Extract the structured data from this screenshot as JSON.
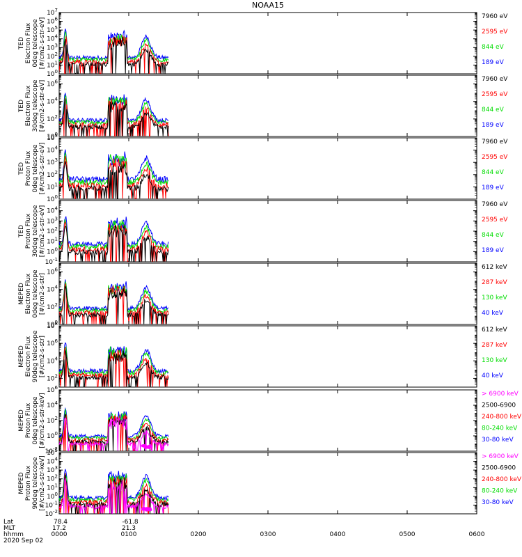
{
  "title": "NOAA15",
  "chart_data": {
    "type": "line",
    "title": "NOAA15",
    "x_axis": {
      "row_labels": [
        "Lat",
        "MLT",
        "hhmm",
        "2020 Sep 02"
      ],
      "ticks": [
        "0000",
        "0100",
        "0200",
        "0300",
        "0400",
        "0500",
        "0600"
      ],
      "lat_values": [
        "78.4",
        "-61.8"
      ],
      "mlt_values": [
        "17.2",
        "21.3"
      ],
      "xlim_hours": [
        0,
        6
      ]
    },
    "panels": [
      {
        "ylabel_lines": [
          "TED",
          "Electron Flux",
          "0deg telescope",
          "[#/cm2-s-str-eV]"
        ],
        "yticks": [
          "10^0",
          "10^1",
          "10^2",
          "10^3",
          "10^4",
          "10^5",
          "10^6",
          "10^7"
        ],
        "ylog": [
          0,
          7
        ],
        "legend": [
          {
            "label": "7960 eV",
            "color": "#000000"
          },
          {
            "label": "2595 eV",
            "color": "#ff0000"
          },
          {
            "label": "844 eV",
            "color": "#00dd00"
          },
          {
            "label": "189 eV",
            "color": "#0000ff"
          }
        ]
      },
      {
        "ylabel_lines": [
          "TED",
          "Electron Flux",
          "30deg telescope",
          "[#/cm2-s-str-eV]"
        ],
        "yticks": [
          "10^0",
          "10^2",
          "10^4",
          "10^6"
        ],
        "ylog": [
          0,
          7
        ],
        "legend": [
          {
            "label": "7960 eV",
            "color": "#000000"
          },
          {
            "label": "2595 eV",
            "color": "#ff0000"
          },
          {
            "label": "844 eV",
            "color": "#00dd00"
          },
          {
            "label": "189 eV",
            "color": "#0000ff"
          }
        ]
      },
      {
        "ylabel_lines": [
          "TED",
          "Proton Flux",
          "0deg telescope",
          "[#/cm2-s-str-eV]"
        ],
        "yticks": [
          "10^0",
          "10^1",
          "10^2",
          "10^3",
          "10^4",
          "10^5"
        ],
        "ylog": [
          0,
          5
        ],
        "legend": [
          {
            "label": "7960 eV",
            "color": "#000000"
          },
          {
            "label": "2595 eV",
            "color": "#ff0000"
          },
          {
            "label": "844 eV",
            "color": "#00dd00"
          },
          {
            "label": "189 eV",
            "color": "#0000ff"
          }
        ]
      },
      {
        "ylabel_lines": [
          "TED",
          "Proton Flux",
          "30deg telescope",
          "[#/cm2-s-str-eV]"
        ],
        "yticks": [
          "10^-1",
          "10^0",
          "10^1",
          "10^2",
          "10^3",
          "10^4"
        ],
        "ylog": [
          -1,
          5
        ],
        "legend": [
          {
            "label": "7960 eV",
            "color": "#000000"
          },
          {
            "label": "2595 eV",
            "color": "#ff0000"
          },
          {
            "label": "844 eV",
            "color": "#00dd00"
          },
          {
            "label": "189 eV",
            "color": "#0000ff"
          }
        ]
      },
      {
        "ylabel_lines": [
          "MEPED",
          "Electron Flux",
          "0deg telescope",
          "[#/cm2-s-str]"
        ],
        "yticks": [
          "10^0",
          "10^2",
          "10^4",
          "10^6"
        ],
        "ylog": [
          0,
          7
        ],
        "legend": [
          {
            "label": "612 keV",
            "color": "#000000"
          },
          {
            "label": "287 keV",
            "color": "#ff0000"
          },
          {
            "label": "130 keV",
            "color": "#00dd00"
          },
          {
            "label": "40 keV",
            "color": "#0000ff"
          }
        ]
      },
      {
        "ylabel_lines": [
          "MEPED",
          "Electron Flux",
          "90deg telescope",
          "[#/cm2-s-str]"
        ],
        "yticks": [
          "10^2",
          "10^4",
          "10^6",
          "10^8"
        ],
        "ylog": [
          1,
          8
        ],
        "legend": [
          {
            "label": "612 keV",
            "color": "#000000"
          },
          {
            "label": "287 keV",
            "color": "#ff0000"
          },
          {
            "label": "130 keV",
            "color": "#00dd00"
          },
          {
            "label": "40 keV",
            "color": "#0000ff"
          }
        ]
      },
      {
        "ylabel_lines": [
          "MEPED",
          "Proton Flux",
          "0deg telescope",
          "[#/cm2-s-str-keV]"
        ],
        "yticks": [
          "10^-2",
          "10^0",
          "10^2",
          "10^4",
          "10^6"
        ],
        "ylog": [
          -2,
          6
        ],
        "legend": [
          {
            "label": "> 6900 keV",
            "color": "#ff00ff"
          },
          {
            "label": "2500-6900",
            "color": "#000000"
          },
          {
            "label": "240-800 keV",
            "color": "#ff0000"
          },
          {
            "label": "80-240 keV",
            "color": "#00dd00"
          },
          {
            "label": "30-80 keV",
            "color": "#0000ff"
          }
        ]
      },
      {
        "ylabel_lines": [
          "MEPED",
          "Proton Flux",
          "90deg telescope",
          "[#/cm2-s-str-keV]"
        ],
        "yticks": [
          "10^-2",
          "10^-1",
          "10^0",
          "10^1",
          "10^2",
          "10^3",
          "10^4",
          "10^5"
        ],
        "ylog": [
          -2,
          5
        ],
        "legend": [
          {
            "label": "> 6900 keV",
            "color": "#ff00ff"
          },
          {
            "label": "2500-6900",
            "color": "#000000"
          },
          {
            "label": "240-800 keV",
            "color": "#ff0000"
          },
          {
            "label": "80-240 keV",
            "color": "#00dd00"
          },
          {
            "label": "30-80 keV",
            "color": "#0000ff"
          }
        ]
      }
    ]
  }
}
